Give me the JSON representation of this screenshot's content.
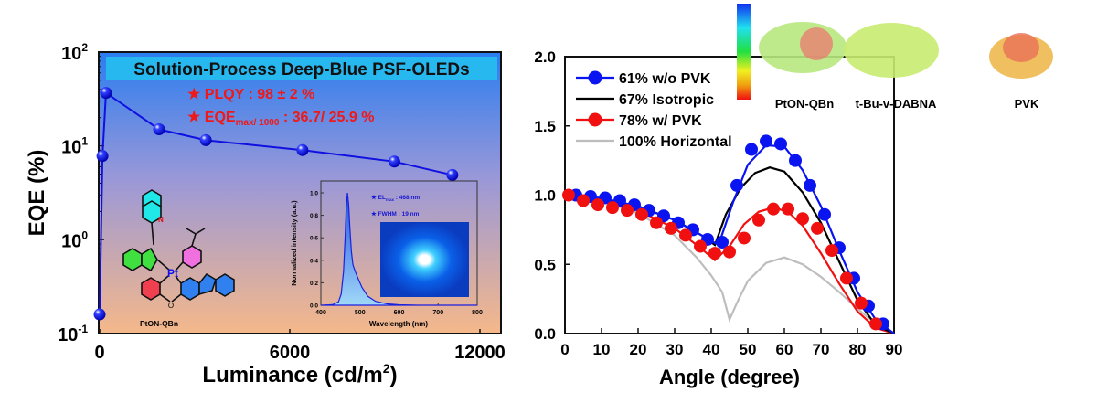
{
  "chart_data": [
    {
      "type": "line",
      "title": "Solution-Process Deep-Blue PSF-OLEDs",
      "xlabel": "Luminance (cd/m2)",
      "ylabel": "EQE (%)",
      "xlim": [
        0,
        12000
      ],
      "ylim": [
        0.1,
        100
      ],
      "yscale": "log",
      "x_ticks": [
        "0",
        "6000",
        "12000"
      ],
      "y_ticks": [
        "10-1",
        "100",
        "101",
        "102"
      ],
      "series": [
        {
          "color": "#1010e0",
          "x": [
            0,
            90,
            200,
            1875,
            3350,
            6400,
            9300,
            11130
          ],
          "y": [
            0.16,
            7.8,
            36.7,
            15,
            11.5,
            9,
            6.8,
            4.9
          ]
        }
      ],
      "annotations": {
        "plqy": "★ PLQY : 98 ± 2 %",
        "eqe_prefix": "★ EQE",
        "eqe_sub": "max/ 1000",
        "eqe_value": " : 36.7/ 25.9 %",
        "molecule_label": "PtON-QBn",
        "pt_label": "Pt",
        "n_label": "N",
        "o_label": "O"
      },
      "inset": {
        "type": "area",
        "xlabel": "Wavelength (nm)",
        "ylabel": "Normalized intensity (a.u.)",
        "xlim": [
          400,
          800
        ],
        "ylim": [
          0,
          1.05
        ],
        "x_ticks": [
          "400",
          "500",
          "600",
          "700",
          "800"
        ],
        "y_ticks": [
          "0.0",
          "0.2",
          "0.4",
          "0.6",
          "0.8",
          "1.0"
        ],
        "x": [
          400,
          430,
          445,
          452,
          458,
          462,
          465,
          468,
          471,
          474,
          478,
          482,
          488,
          495,
          505,
          520,
          540,
          570,
          600,
          650,
          800
        ],
        "y": [
          0,
          0.005,
          0.03,
          0.1,
          0.3,
          0.6,
          0.88,
          1.0,
          0.9,
          0.7,
          0.48,
          0.36,
          0.3,
          0.24,
          0.16,
          0.08,
          0.035,
          0.012,
          0.004,
          0,
          0
        ],
        "half_max_line": 0.5,
        "el_max_prefix": "★ EL",
        "el_max_sub": "max",
        "el_max_value": " : 468 nm",
        "fwhm": "★ FWHM : 19 nm"
      }
    },
    {
      "type": "line",
      "xlabel": "Angle (degree)",
      "ylabel": "",
      "xlim": [
        0,
        90
      ],
      "ylim": [
        0,
        2.0
      ],
      "x_ticks": [
        "0",
        "10",
        "20",
        "30",
        "40",
        "50",
        "60",
        "70",
        "80",
        "90"
      ],
      "y_ticks": [
        "0.0",
        "0.5",
        "1.0",
        "1.5",
        "2.0"
      ],
      "legend_position": "top-left",
      "series": [
        {
          "name": "61% w/o PVK",
          "color": "#0a14f0",
          "points_x": [
            3,
            7,
            11,
            15,
            19,
            23,
            27,
            31,
            35,
            39,
            43,
            47,
            51,
            55,
            59,
            63,
            67,
            71,
            75,
            79,
            83,
            87
          ],
          "points_y": [
            1.0,
            0.99,
            0.98,
            0.96,
            0.93,
            0.89,
            0.85,
            0.8,
            0.75,
            0.68,
            0.66,
            1.07,
            1.33,
            1.39,
            1.37,
            1.25,
            1.07,
            0.86,
            0.62,
            0.4,
            0.2,
            0.07
          ],
          "fit_x": [
            0,
            10,
            20,
            30,
            38,
            42,
            46,
            50,
            55,
            60,
            65,
            70,
            75,
            80,
            85,
            90
          ],
          "fit_y": [
            1.0,
            0.98,
            0.92,
            0.82,
            0.7,
            0.64,
            0.95,
            1.22,
            1.36,
            1.35,
            1.18,
            0.92,
            0.6,
            0.3,
            0.1,
            0.0
          ]
        },
        {
          "name": "67% Isotropic",
          "color": "#000000",
          "fit_x": [
            0,
            10,
            20,
            30,
            38,
            41,
            44,
            48,
            52,
            56,
            60,
            65,
            70,
            75,
            80,
            85,
            90
          ],
          "fit_y": [
            1.0,
            0.97,
            0.92,
            0.82,
            0.7,
            0.64,
            0.86,
            1.05,
            1.16,
            1.2,
            1.17,
            1.02,
            0.8,
            0.52,
            0.24,
            0.06,
            0.0
          ]
        },
        {
          "name": "78% w/ PVK",
          "color": "#f01010",
          "points_x": [
            1,
            5,
            9,
            13,
            17,
            21,
            25,
            29,
            33,
            37,
            41,
            45,
            49,
            53,
            57,
            61,
            65,
            69,
            73,
            77,
            81,
            85
          ],
          "points_y": [
            1.0,
            0.96,
            0.93,
            0.91,
            0.89,
            0.86,
            0.8,
            0.76,
            0.71,
            0.63,
            0.58,
            0.59,
            0.69,
            0.82,
            0.9,
            0.9,
            0.83,
            0.76,
            0.6,
            0.4,
            0.22,
            0.07
          ],
          "fit_x": [
            0,
            10,
            20,
            30,
            37,
            41,
            45,
            49,
            53,
            57,
            61,
            65,
            70,
            75,
            80,
            85,
            90
          ],
          "fit_y": [
            1.0,
            0.96,
            0.89,
            0.76,
            0.62,
            0.53,
            0.63,
            0.79,
            0.88,
            0.91,
            0.88,
            0.78,
            0.58,
            0.36,
            0.16,
            0.04,
            0.0
          ]
        },
        {
          "name": "100% Horizontal",
          "color": "#bdbdbd",
          "fit_x": [
            0,
            10,
            20,
            30,
            36,
            40,
            43,
            45,
            47,
            50,
            55,
            60,
            65,
            70,
            75,
            80,
            85,
            90
          ],
          "fit_y": [
            1.0,
            0.96,
            0.87,
            0.71,
            0.55,
            0.42,
            0.3,
            0.1,
            0.22,
            0.38,
            0.51,
            0.55,
            0.5,
            0.41,
            0.3,
            0.18,
            0.07,
            0.0
          ]
        }
      ],
      "esp_colorbar": [
        "#1030f0",
        "#20e0f0",
        "#20e040",
        "#f0f020",
        "#f0a010",
        "#f01010"
      ],
      "molecules": [
        "PtON-QBn",
        "t-Bu-v-DABNA",
        "PVK"
      ]
    }
  ]
}
